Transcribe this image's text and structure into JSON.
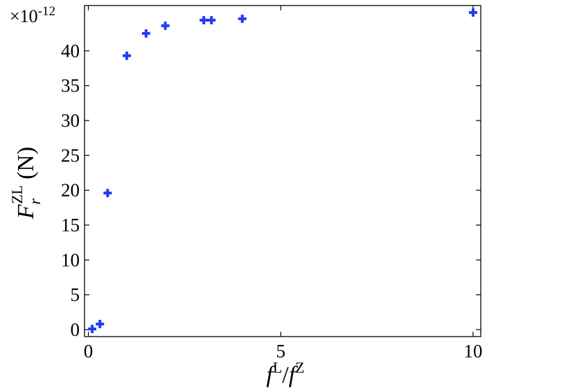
{
  "chart_data": {
    "type": "scatter",
    "xlabel": "f^L/f^Z",
    "ylabel": "F_r^ZL (N)",
    "x_axis_label": {
      "f1": "f",
      "sup1": "L",
      "slash": "/",
      "f2": "f",
      "sup2": "Z"
    },
    "y_axis_label": {
      "F": "F",
      "sub": "r",
      "sup": "ZL",
      "unit": " (N)"
    },
    "y_multiplier": {
      "base": "×10",
      "exponent": "-12"
    },
    "xlim": [
      -0.1,
      10.2
    ],
    "ylim": [
      -1,
      46.5
    ],
    "xticks": [
      0,
      5,
      10
    ],
    "yticks": [
      0,
      5,
      10,
      15,
      20,
      25,
      30,
      35,
      40
    ],
    "x": [
      0.1,
      0.3,
      0.5,
      1.0,
      1.5,
      2.0,
      3.0,
      3.2,
      4.0,
      10.0
    ],
    "y": [
      0.1,
      0.8,
      19.6,
      39.3,
      42.5,
      43.6,
      44.4,
      44.4,
      44.6,
      45.5
    ],
    "marker": "plus",
    "marker_color": "#1f3df2",
    "grid": false,
    "legend": "none"
  }
}
